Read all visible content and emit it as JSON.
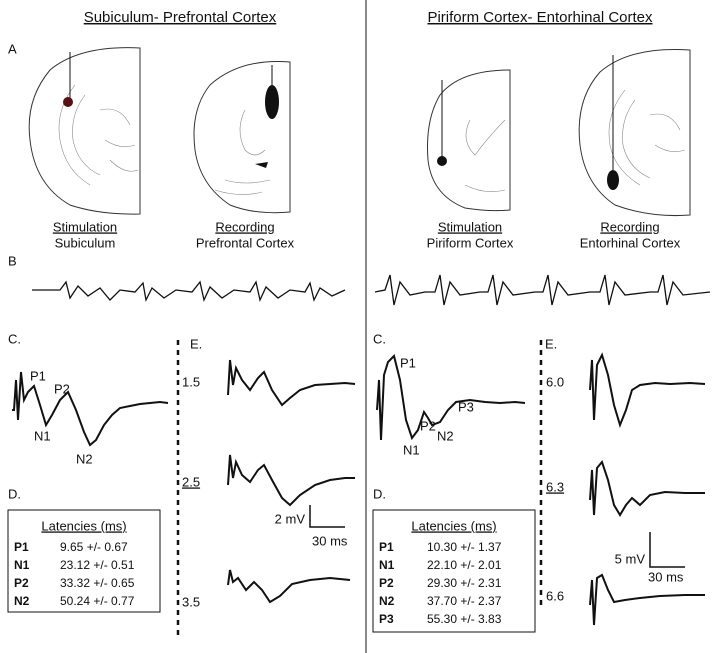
{
  "left": {
    "title": "Subiculum- Prefrontal Cortex",
    "panel_a": "A",
    "stim_label": "Stimulation",
    "stim_region": "Subiculum",
    "rec_label": "Recording",
    "rec_region": "Prefrontal Cortex",
    "panel_b": "B",
    "panel_c": "C.",
    "panel_d": "D.",
    "panel_e": "E.",
    "peaks": [
      "P1",
      "N1",
      "P2",
      "N2"
    ],
    "intensities": [
      "1.5",
      "2.5",
      "3.5"
    ],
    "scale": {
      "voltage": "2 mV",
      "time": "30 ms"
    },
    "latencies": {
      "title": "Latencies (ms)",
      "rows": [
        [
          "P1",
          "9.65 +/- 0.67"
        ],
        [
          "N1",
          "23.12 +/- 0.51"
        ],
        [
          "P2",
          "33.32 +/- 0.65"
        ],
        [
          "N2",
          "50.24 +/- 0.77"
        ]
      ]
    }
  },
  "right": {
    "title": "Piriform Cortex- Entorhinal Cortex",
    "stim_label": "Stimulation",
    "stim_region": "Piriform Cortex",
    "rec_label": "Recording",
    "rec_region": "Entorhinal Cortex",
    "panel_c": "C.",
    "panel_d": "D.",
    "panel_e": "E.",
    "peaks": [
      "P1",
      "P2",
      "P3",
      "N1",
      "N2"
    ],
    "intensities": [
      "6.0",
      "6.3",
      "6.6"
    ],
    "scale": {
      "voltage": "5 mV",
      "time": "30 ms"
    },
    "latencies": {
      "title": "Latencies (ms)",
      "rows": [
        [
          "P1",
          "10.30 +/- 1.37"
        ],
        [
          "N1",
          "22.10 +/- 2.01"
        ],
        [
          "P2",
          "29.30 +/- 2.31"
        ],
        [
          "N2",
          "37.70 +/- 2.37"
        ],
        [
          "P3",
          "55.30 +/- 3.83"
        ]
      ]
    }
  }
}
